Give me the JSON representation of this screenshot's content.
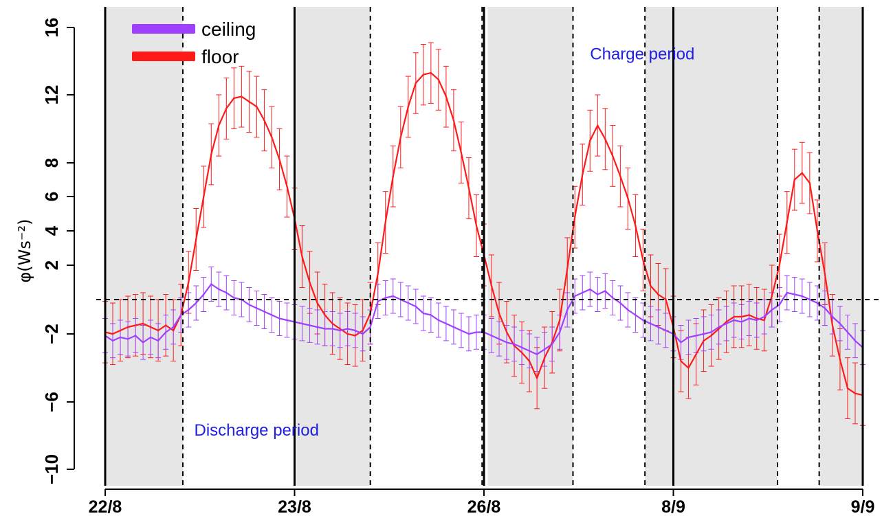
{
  "chart_data": {
    "type": "line",
    "ylabel": "φ(Ws⁻²)",
    "xlabel": "",
    "ylim": [
      -10,
      16
    ],
    "yticks": [
      -10,
      -6,
      -2,
      2,
      4,
      6,
      8,
      12,
      16
    ],
    "x_tick_labels": [
      "22/8",
      "23/8",
      "26/8",
      "8/9",
      "9/9"
    ],
    "x_tick_positions": [
      0,
      100,
      200,
      300,
      400
    ],
    "grid": false,
    "legend_position": "top-left",
    "legend": [
      {
        "label": "ceiling",
        "color": "#a040ff"
      },
      {
        "label": "floor",
        "color": "#ff1a1a"
      }
    ],
    "annotations": [
      {
        "text": "Discharge period",
        "x": 47,
        "y": -8.0
      },
      {
        "text": "Charge period",
        "x": 256,
        "y": 14.1
      }
    ],
    "reference_line_y": 0,
    "shaded_periods": [
      [
        0,
        41
      ],
      [
        101,
        140
      ],
      [
        202,
        247
      ],
      [
        285,
        300
      ],
      [
        300,
        355
      ],
      [
        377,
        400
      ]
    ],
    "period_boundaries_dashed": [
      41,
      100,
      140,
      199,
      247,
      285,
      355,
      377
    ],
    "day_boundaries_solid": [
      0,
      100,
      200,
      300,
      400
    ],
    "series": [
      {
        "name": "floor",
        "color": "#ff1a1a",
        "errorbar_halfwidth": 1.8,
        "x": [
          0,
          4,
          8,
          12,
          16,
          20,
          24,
          28,
          32,
          36,
          40,
          44,
          48,
          52,
          56,
          60,
          64,
          68,
          72,
          76,
          80,
          84,
          88,
          92,
          96,
          100,
          104,
          108,
          112,
          116,
          120,
          124,
          128,
          132,
          136,
          140,
          144,
          148,
          152,
          156,
          160,
          164,
          168,
          172,
          176,
          180,
          184,
          188,
          192,
          196,
          200,
          204,
          208,
          212,
          216,
          220,
          224,
          228,
          232,
          236,
          240,
          244,
          248,
          252,
          256,
          260,
          264,
          268,
          272,
          276,
          280,
          284,
          288,
          292,
          296,
          300,
          304,
          308,
          312,
          316,
          320,
          324,
          328,
          332,
          336,
          340,
          344,
          348,
          352,
          356,
          360,
          364,
          368,
          372,
          376,
          380,
          384,
          388,
          392,
          396,
          400
        ],
        "values": [
          -1.9,
          -2.0,
          -1.8,
          -1.6,
          -1.5,
          -1.4,
          -1.6,
          -1.8,
          -1.5,
          -1.8,
          -0.9,
          1.0,
          3.5,
          6.0,
          8.5,
          10.2,
          11.2,
          11.8,
          11.9,
          11.6,
          11.3,
          10.5,
          9.5,
          8.2,
          6.6,
          4.7,
          2.5,
          1.0,
          -0.2,
          -0.9,
          -1.4,
          -1.7,
          -2.0,
          -2.1,
          -1.8,
          -0.8,
          1.5,
          4.5,
          7.2,
          9.5,
          11.3,
          12.7,
          13.2,
          13.3,
          12.9,
          11.9,
          10.5,
          8.6,
          6.5,
          4.3,
          2.6,
          0.8,
          -0.8,
          -1.9,
          -2.7,
          -3.1,
          -3.6,
          -4.6,
          -3.4,
          -2.5,
          -1.2,
          1.8,
          4.8,
          7.3,
          9.3,
          10.2,
          9.4,
          8.4,
          7.2,
          5.9,
          4.3,
          2.3,
          0.8,
          0.3,
          0.0,
          -1.6,
          -3.6,
          -4.0,
          -3.2,
          -2.4,
          -2.1,
          -1.7,
          -1.3,
          -1.0,
          -1.0,
          -0.9,
          -1.1,
          -1.2,
          0.2,
          2.0,
          4.5,
          7.0,
          7.4,
          6.8,
          4.0,
          1.5,
          -1.5,
          -3.5,
          -5.2,
          -5.5,
          -5.6
        ]
      },
      {
        "name": "ceiling",
        "color": "#a040ff",
        "errorbar_halfwidth": 1.0,
        "x": [
          0,
          4,
          8,
          12,
          16,
          20,
          24,
          28,
          32,
          36,
          40,
          44,
          48,
          52,
          56,
          60,
          64,
          68,
          72,
          76,
          80,
          84,
          88,
          92,
          96,
          100,
          104,
          108,
          112,
          116,
          120,
          124,
          128,
          132,
          136,
          140,
          144,
          148,
          152,
          156,
          160,
          164,
          168,
          172,
          176,
          180,
          184,
          188,
          192,
          196,
          200,
          204,
          208,
          212,
          216,
          220,
          224,
          228,
          232,
          236,
          240,
          244,
          248,
          252,
          256,
          260,
          264,
          268,
          272,
          276,
          280,
          284,
          288,
          292,
          296,
          300,
          304,
          308,
          312,
          316,
          320,
          324,
          328,
          332,
          336,
          340,
          344,
          348,
          352,
          356,
          360,
          364,
          368,
          372,
          376,
          380,
          384,
          388,
          392,
          396,
          400
        ],
        "values": [
          -2.1,
          -2.4,
          -2.2,
          -2.3,
          -2.1,
          -2.5,
          -2.2,
          -2.4,
          -1.9,
          -1.6,
          -0.9,
          -0.6,
          -0.2,
          0.3,
          0.9,
          0.6,
          0.4,
          0.1,
          0.0,
          -0.3,
          -0.5,
          -0.7,
          -0.9,
          -1.1,
          -1.2,
          -1.3,
          -1.4,
          -1.5,
          -1.6,
          -1.7,
          -1.7,
          -1.8,
          -1.7,
          -1.8,
          -2.0,
          -1.6,
          -0.1,
          0.1,
          0.2,
          0.0,
          -0.2,
          -0.4,
          -0.8,
          -0.9,
          -1.2,
          -1.4,
          -1.6,
          -1.8,
          -2.0,
          -1.9,
          -1.9,
          -2.1,
          -2.3,
          -2.5,
          -2.6,
          -2.8,
          -3.0,
          -3.2,
          -2.9,
          -2.6,
          -1.9,
          -0.6,
          0.2,
          0.4,
          0.6,
          0.3,
          0.5,
          0.1,
          -0.2,
          -0.6,
          -0.9,
          -1.2,
          -1.4,
          -1.6,
          -1.8,
          -2.0,
          -2.5,
          -2.2,
          -2.1,
          -2.0,
          -1.9,
          -1.6,
          -1.4,
          -1.2,
          -1.3,
          -1.1,
          -1.2,
          -1.0,
          -0.6,
          -0.3,
          0.4,
          0.3,
          0.2,
          0.0,
          -0.2,
          -0.5,
          -1.0,
          -1.4,
          -1.9,
          -2.4,
          -2.8
        ]
      }
    ]
  }
}
